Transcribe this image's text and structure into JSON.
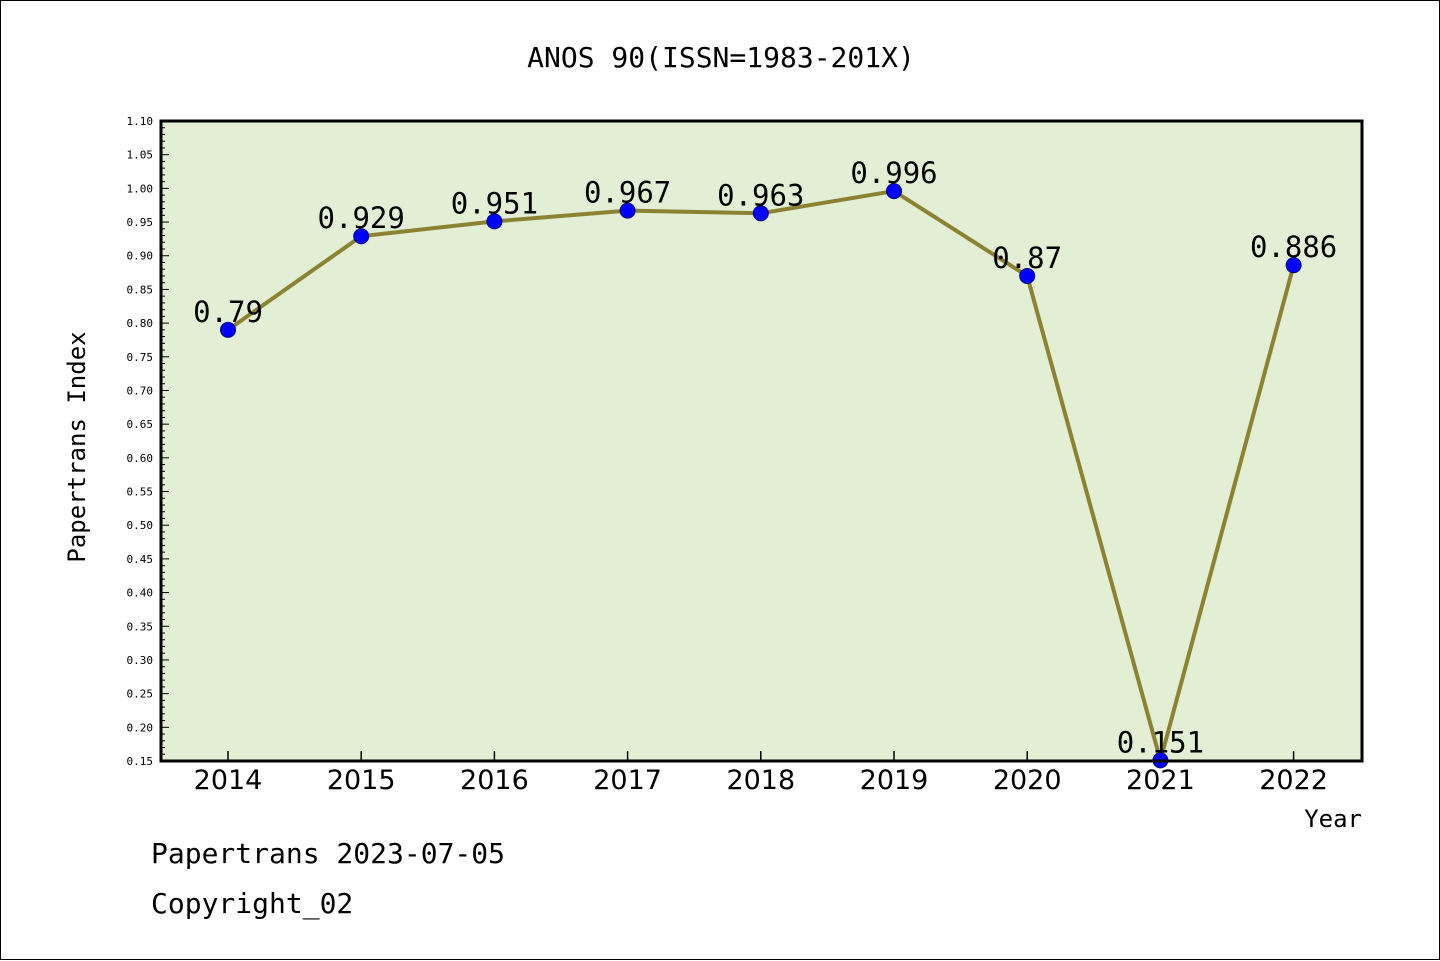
{
  "chart_data": {
    "type": "line",
    "title": "ANOS 90(ISSN=1983-201X)",
    "xlabel": "Year",
    "ylabel": "Papertrans Index",
    "categories": [
      "2014",
      "2015",
      "2016",
      "2017",
      "2018",
      "2019",
      "2020",
      "2021",
      "2022"
    ],
    "values": [
      0.79,
      0.929,
      0.951,
      0.967,
      0.963,
      0.996,
      0.87,
      0.151,
      0.886
    ],
    "data_labels": [
      "0.79",
      "0.929",
      "0.951",
      "0.967",
      "0.963",
      "0.996",
      "0.87",
      "0.151",
      "0.886"
    ],
    "ylim": [
      0.15,
      1.1
    ],
    "yticks": [
      "0.15",
      "0.20",
      "0.25",
      "0.30",
      "0.35",
      "0.40",
      "0.45",
      "0.50",
      "0.55",
      "0.60",
      "0.65",
      "0.70",
      "0.75",
      "0.80",
      "0.85",
      "0.90",
      "0.95",
      "1.00",
      "1.05",
      "1.10"
    ],
    "grid": false,
    "legend": "none",
    "colors": {
      "plot_background": "#e2efd5",
      "line": "#8b8232",
      "marker": "#0000ff",
      "marker_edge": "#000080"
    }
  },
  "footer": {
    "line1": "Papertrans 2023-07-05",
    "line2": "Copyright_02"
  }
}
